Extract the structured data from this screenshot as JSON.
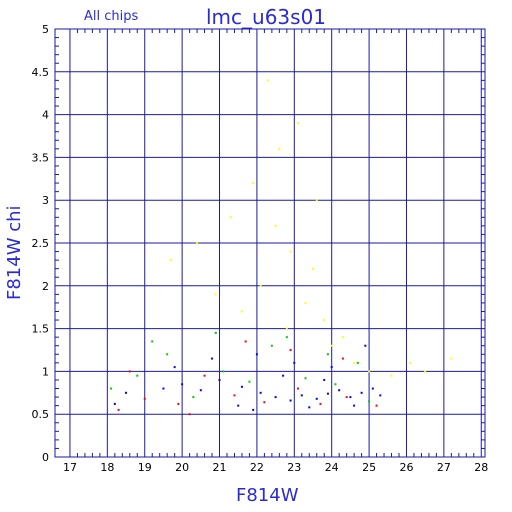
{
  "chart_data": {
    "type": "scatter",
    "title": "lmc_u63s01",
    "subtitle": "All chips",
    "xlabel": "F814W",
    "ylabel": "F814W chi",
    "xlim": [
      16.6,
      28.1
    ],
    "ylim": [
      0,
      5
    ],
    "xticks": [
      "17",
      "18",
      "19",
      "20",
      "21",
      "22",
      "23",
      "24",
      "25",
      "26",
      "27",
      "28"
    ],
    "yticks": [
      "0",
      "0.5",
      "1",
      "1.5",
      "2",
      "2.5",
      "3",
      "3.5",
      "4",
      "4.5",
      "5"
    ],
    "grid": true,
    "series": [
      {
        "color": "#0000ff",
        "points": [
          [
            21.6,
            0.82
          ],
          [
            22.1,
            0.75
          ],
          [
            22.5,
            0.7
          ],
          [
            22.9,
            0.66
          ],
          [
            23.2,
            0.72
          ],
          [
            23.6,
            0.68
          ],
          [
            23.9,
            0.74
          ],
          [
            24.2,
            0.78
          ],
          [
            24.5,
            0.7
          ],
          [
            24.8,
            0.75
          ],
          [
            25.1,
            0.8
          ],
          [
            21.0,
            0.9
          ],
          [
            20.5,
            0.78
          ],
          [
            20.0,
            0.85
          ],
          [
            19.5,
            0.8
          ],
          [
            18.5,
            0.75
          ],
          [
            22.0,
            1.2
          ],
          [
            23.0,
            1.1
          ],
          [
            24.0,
            1.05
          ],
          [
            21.5,
            0.6
          ],
          [
            23.4,
            0.58
          ],
          [
            24.6,
            0.6
          ],
          [
            19.8,
            1.05
          ],
          [
            22.7,
            0.95
          ],
          [
            23.8,
            0.9
          ],
          [
            25.3,
            0.72
          ],
          [
            24.9,
            1.3
          ],
          [
            18.2,
            0.62
          ],
          [
            20.8,
            1.15
          ],
          [
            21.9,
            0.55
          ]
        ]
      },
      {
        "color": "#00cc00",
        "points": [
          [
            18.1,
            0.8
          ],
          [
            18.8,
            0.95
          ],
          [
            19.6,
            1.2
          ],
          [
            20.3,
            0.7
          ],
          [
            21.1,
            1.0
          ],
          [
            21.8,
            0.88
          ],
          [
            22.4,
            1.3
          ],
          [
            23.3,
            0.92
          ],
          [
            24.1,
            0.85
          ],
          [
            24.7,
            1.1
          ],
          [
            25.0,
            0.65
          ],
          [
            20.9,
            1.45
          ],
          [
            22.8,
            1.4
          ],
          [
            19.2,
            1.35
          ],
          [
            23.9,
            1.2
          ]
        ]
      },
      {
        "color": "#ff0000",
        "points": [
          [
            18.3,
            0.55
          ],
          [
            19.0,
            0.68
          ],
          [
            19.9,
            0.62
          ],
          [
            20.6,
            0.95
          ],
          [
            21.4,
            0.72
          ],
          [
            22.2,
            0.64
          ],
          [
            23.1,
            0.8
          ],
          [
            23.7,
            0.62
          ],
          [
            24.4,
            0.7
          ],
          [
            25.2,
            0.6
          ],
          [
            21.7,
            1.35
          ],
          [
            22.9,
            1.25
          ],
          [
            24.3,
            1.15
          ],
          [
            18.6,
            1.0
          ],
          [
            20.2,
            0.5
          ]
        ]
      },
      {
        "color": "#ffff00",
        "points": [
          [
            21.3,
            2.8
          ],
          [
            21.9,
            3.2
          ],
          [
            22.3,
            4.4
          ],
          [
            22.6,
            3.6
          ],
          [
            22.9,
            2.4
          ],
          [
            23.1,
            3.9
          ],
          [
            23.3,
            1.8
          ],
          [
            23.5,
            2.2
          ],
          [
            23.8,
            1.6
          ],
          [
            24.0,
            1.3
          ],
          [
            22.1,
            2.0
          ],
          [
            21.6,
            1.7
          ],
          [
            20.4,
            2.5
          ],
          [
            20.9,
            1.9
          ],
          [
            22.8,
            1.5
          ],
          [
            24.3,
            1.4
          ],
          [
            24.6,
            1.1
          ],
          [
            25.0,
            1.0
          ],
          [
            25.6,
            0.95
          ],
          [
            26.1,
            1.1
          ],
          [
            26.5,
            1.0
          ],
          [
            27.2,
            1.15
          ],
          [
            19.7,
            2.3
          ],
          [
            22.5,
            2.7
          ],
          [
            23.6,
            3.0
          ]
        ]
      }
    ]
  }
}
